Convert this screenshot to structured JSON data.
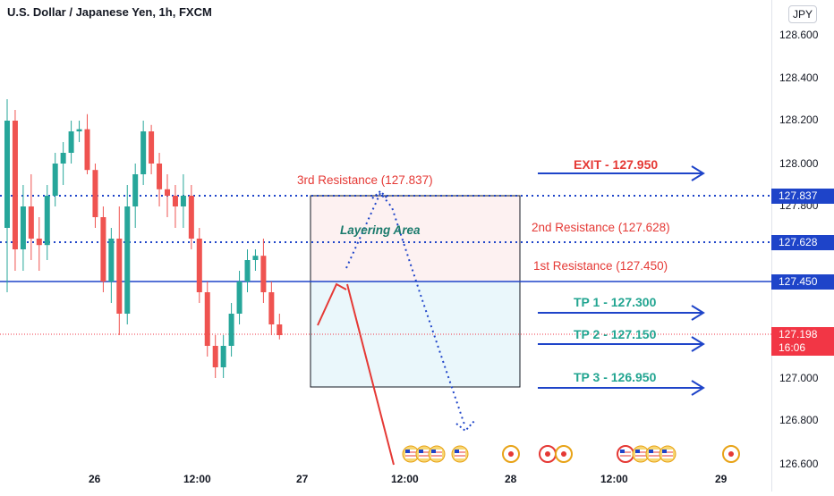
{
  "header": {
    "title": "U.S. Dollar / Japanese Yen, 1h, FXCM"
  },
  "axis": {
    "currency": "JPY",
    "price_ticks": [
      "128.600",
      "128.400",
      "128.200",
      "128.000",
      "127.800",
      "127.000",
      "126.800",
      "126.600"
    ],
    "time_ticks": [
      "26",
      "12:00",
      "27",
      "12:00",
      "28",
      "12:00",
      "29"
    ]
  },
  "price_tags": {
    "r3": "127.837",
    "r2": "127.628",
    "r1": "127.450",
    "current_price": "127.198",
    "countdown": "16:06"
  },
  "annotations": {
    "third_resistance": "3rd Resistance (127.837)",
    "second_resistance": "2nd Resistance (127.628)",
    "first_resistance": "1st Resistance (127.450)",
    "layering": "Layering Area",
    "exit": "EXIT - 127.950",
    "tp1": "TP 1 - 127.300",
    "tp2": "TP 2 - 127.150",
    "tp3": "TP 3 - 126.950"
  },
  "colors": {
    "bull": "#26a69a",
    "bear": "#ef5350",
    "level_line": "#1e44c9",
    "resistance_zone": "#fdf1f1",
    "target_zone": "#eaf7fb"
  },
  "chart_data": {
    "type": "candlestick",
    "symbol": "USDJPY",
    "interval": "1h",
    "ylim": [
      126.6,
      128.7
    ],
    "x_ticks": [
      "26",
      "12:00",
      "27",
      "12:00",
      "28",
      "12:00",
      "29"
    ],
    "candles": [
      {
        "o": 127.7,
        "h": 128.3,
        "l": 127.4,
        "c": 128.2
      },
      {
        "o": 128.2,
        "h": 128.25,
        "l": 127.5,
        "c": 127.6
      },
      {
        "o": 127.6,
        "h": 127.9,
        "l": 127.5,
        "c": 127.8
      },
      {
        "o": 127.8,
        "h": 127.95,
        "l": 127.55,
        "c": 127.65
      },
      {
        "o": 127.65,
        "h": 127.75,
        "l": 127.5,
        "c": 127.62
      },
      {
        "o": 127.62,
        "h": 127.9,
        "l": 127.55,
        "c": 127.85
      },
      {
        "o": 127.85,
        "h": 128.05,
        "l": 127.8,
        "c": 128.0
      },
      {
        "o": 128.0,
        "h": 128.1,
        "l": 127.9,
        "c": 128.05
      },
      {
        "o": 128.05,
        "h": 128.2,
        "l": 128.0,
        "c": 128.15
      },
      {
        "o": 128.15,
        "h": 128.2,
        "l": 128.1,
        "c": 128.16
      },
      {
        "o": 128.16,
        "h": 128.23,
        "l": 127.95,
        "c": 127.97
      },
      {
        "o": 127.97,
        "h": 128.0,
        "l": 127.7,
        "c": 127.75
      },
      {
        "o": 127.75,
        "h": 127.8,
        "l": 127.4,
        "c": 127.45
      },
      {
        "o": 127.45,
        "h": 127.7,
        "l": 127.35,
        "c": 127.65
      },
      {
        "o": 127.65,
        "h": 127.8,
        "l": 127.2,
        "c": 127.3
      },
      {
        "o": 127.3,
        "h": 127.9,
        "l": 127.25,
        "c": 127.8
      },
      {
        "o": 127.8,
        "h": 128.0,
        "l": 127.7,
        "c": 127.95
      },
      {
        "o": 127.95,
        "h": 128.2,
        "l": 127.9,
        "c": 128.15
      },
      {
        "o": 128.15,
        "h": 128.18,
        "l": 127.95,
        "c": 128.0
      },
      {
        "o": 128.0,
        "h": 128.05,
        "l": 127.8,
        "c": 127.88
      },
      {
        "o": 127.88,
        "h": 127.95,
        "l": 127.75,
        "c": 127.85
      },
      {
        "o": 127.85,
        "h": 127.9,
        "l": 127.7,
        "c": 127.8
      },
      {
        "o": 127.8,
        "h": 127.95,
        "l": 127.7,
        "c": 127.85
      },
      {
        "o": 127.85,
        "h": 127.9,
        "l": 127.6,
        "c": 127.65
      },
      {
        "o": 127.65,
        "h": 127.7,
        "l": 127.35,
        "c": 127.4
      },
      {
        "o": 127.4,
        "h": 127.45,
        "l": 127.1,
        "c": 127.15
      },
      {
        "o": 127.15,
        "h": 127.2,
        "l": 127.0,
        "c": 127.05
      },
      {
        "o": 127.05,
        "h": 127.2,
        "l": 127.0,
        "c": 127.15
      },
      {
        "o": 127.15,
        "h": 127.35,
        "l": 127.1,
        "c": 127.3
      },
      {
        "o": 127.3,
        "h": 127.5,
        "l": 127.25,
        "c": 127.45
      },
      {
        "o": 127.45,
        "h": 127.6,
        "l": 127.4,
        "c": 127.55
      },
      {
        "o": 127.55,
        "h": 127.6,
        "l": 127.5,
        "c": 127.57
      },
      {
        "o": 127.57,
        "h": 127.65,
        "l": 127.35,
        "c": 127.4
      },
      {
        "o": 127.4,
        "h": 127.45,
        "l": 127.2,
        "c": 127.25
      },
      {
        "o": 127.25,
        "h": 127.3,
        "l": 127.18,
        "c": 127.2
      }
    ]
  }
}
